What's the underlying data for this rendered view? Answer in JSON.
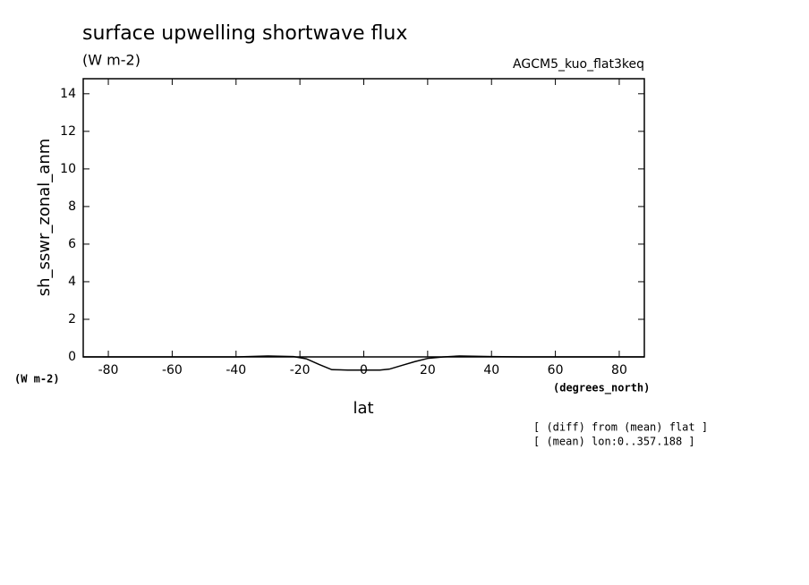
{
  "chart_data": {
    "type": "line",
    "title": "surface upwelling shortwave flux",
    "subtitle": "(W m-2)",
    "annotation": "AGCM5_kuo_flat3keq",
    "y_label": "sh_sswr_zonal_anm",
    "x_label": "lat",
    "y_unit": "(W m-2)",
    "x_unit": "(degrees_north)",
    "notes": [
      "[ (diff) from (mean) flat ]",
      "[ (mean) lon:0..357.188 ]"
    ],
    "x": [
      -87.86,
      -60,
      -40,
      -30,
      -22,
      -18,
      -14,
      -10,
      -5,
      0,
      5,
      8,
      12,
      16,
      20,
      25,
      30,
      40,
      50,
      87.86
    ],
    "series": [
      {
        "name": "sh_sswr_zonal_anm",
        "color": "#000000",
        "values": [
          0,
          0,
          0,
          0.05,
          0.02,
          -0.1,
          -0.4,
          -0.68,
          -0.7,
          -0.7,
          -0.7,
          -0.65,
          -0.45,
          -0.25,
          -0.08,
          0,
          0.05,
          0.02,
          0,
          0
        ]
      }
    ],
    "xlim": [
      -87.86,
      87.86
    ],
    "ylim": [
      0,
      14.8
    ],
    "xticks": [
      -80,
      -60,
      -40,
      -20,
      0,
      20,
      40,
      60,
      80
    ],
    "yticks": [
      0,
      2,
      4,
      6,
      8,
      10,
      12,
      14
    ]
  }
}
